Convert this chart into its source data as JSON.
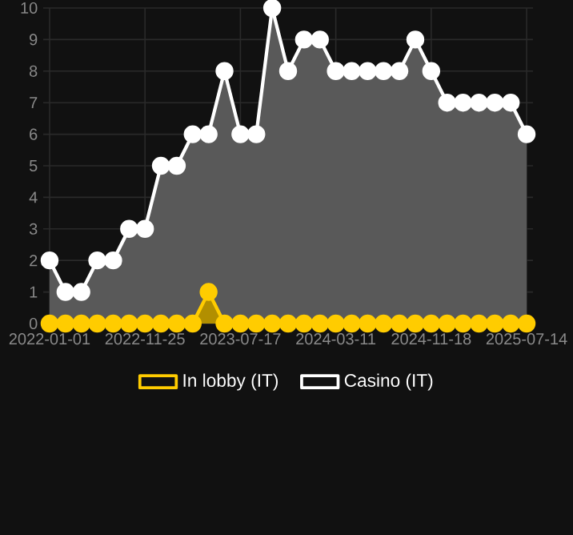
{
  "chart_data": {
    "type": "area",
    "categories": [
      "2022-01-01",
      null,
      null,
      null,
      null,
      null,
      "2022-11-25",
      null,
      null,
      null,
      null,
      null,
      "2023-07-17",
      null,
      null,
      null,
      null,
      null,
      "2024-03-11",
      null,
      null,
      null,
      null,
      null,
      "2024-11-18",
      null,
      null,
      null,
      null,
      null,
      "2025-07-14"
    ],
    "series": [
      {
        "name": "In lobby (IT)",
        "color": "#ffcc00",
        "values": [
          0,
          0,
          0,
          0,
          0,
          0,
          0,
          0,
          0,
          0,
          1,
          0,
          0,
          0,
          0,
          0,
          0,
          0,
          0,
          0,
          0,
          0,
          0,
          0,
          0,
          0,
          0,
          0,
          0,
          0,
          0
        ]
      },
      {
        "name": "Casino (IT)",
        "color": "#ffffff",
        "values": [
          2,
          1,
          1,
          2,
          2,
          3,
          3,
          5,
          5,
          6,
          6,
          8,
          6,
          6,
          10,
          8,
          9,
          9,
          8,
          8,
          8,
          8,
          8,
          9,
          8,
          7,
          7,
          7,
          7,
          7,
          6
        ]
      }
    ],
    "ylim": [
      0,
      10
    ],
    "yticks": [
      0,
      1,
      2,
      3,
      4,
      5,
      6,
      7,
      8,
      9,
      10
    ],
    "grid": true,
    "legend": "bottom",
    "marker": "circle",
    "line_style": "solid"
  }
}
